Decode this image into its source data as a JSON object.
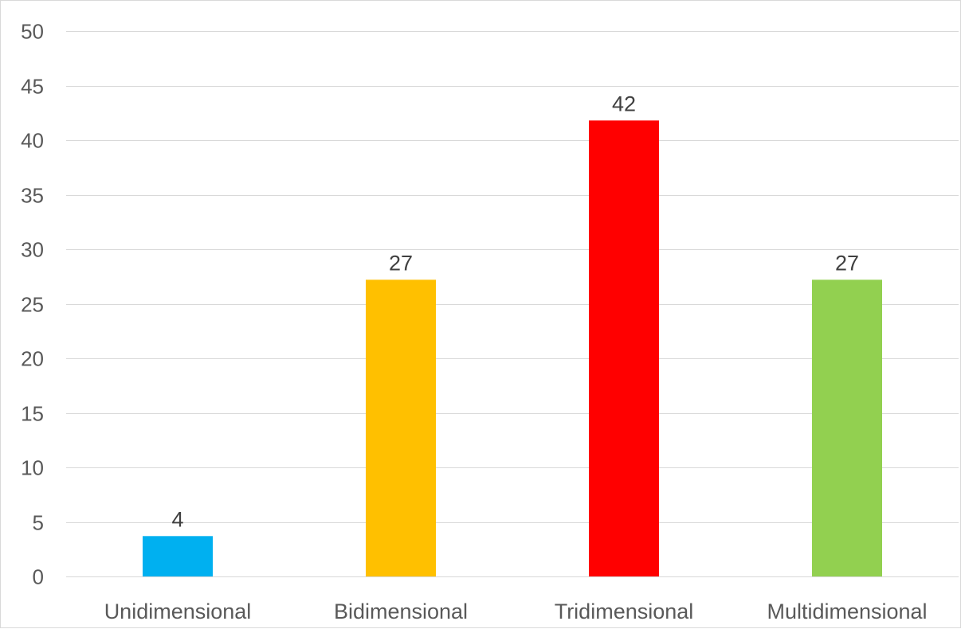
{
  "chart_data": {
    "type": "bar",
    "title": "",
    "xlabel": "",
    "ylabel": "",
    "categories": [
      "Unidimensional",
      "Bidimensional",
      "Tridimensional",
      "Multidimensional"
    ],
    "values": [
      3.7,
      27.2,
      41.8,
      27.2
    ],
    "data_labels": [
      "4",
      "27",
      "42",
      "27"
    ],
    "colors": [
      "#00b0f0",
      "#ffc000",
      "#ff0000",
      "#92d050"
    ],
    "ylim": [
      0,
      50
    ],
    "yticks": [
      0,
      5,
      10,
      15,
      20,
      25,
      30,
      35,
      40,
      45,
      50
    ],
    "grid": true,
    "legend": "none",
    "gridline_color": "#d9d9d9",
    "text_color": "#595959"
  }
}
